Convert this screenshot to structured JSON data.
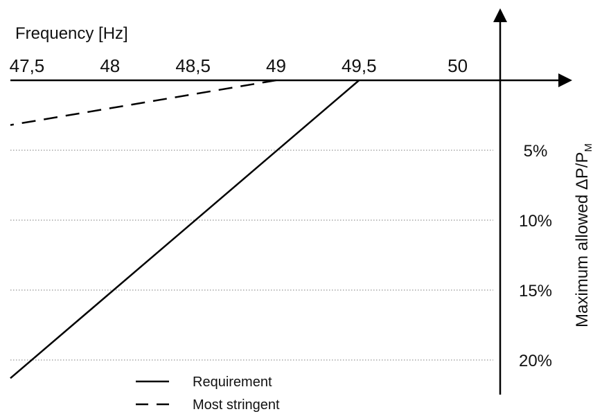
{
  "chart_data": {
    "type": "line",
    "title": "",
    "xlabel": "Frequency [Hz]",
    "ylabel": {
      "main": "Maximum allowed ΔP/P",
      "subscript": "M"
    },
    "x_ticks": [
      "47,5",
      "48",
      "48,5",
      "49",
      "49,5",
      "50"
    ],
    "x_tick_values": [
      47.5,
      48,
      48.5,
      49,
      49.5,
      50
    ],
    "y_ticks": [
      "5%",
      "10%",
      "15%",
      "20%"
    ],
    "y_tick_values": [
      5,
      10,
      15,
      20
    ],
    "xlim": [
      47.4,
      50.35
    ],
    "ylim": [
      0,
      21.5
    ],
    "y_inverted": true,
    "grid": "horizontal dotted at y ticks",
    "legend_position": "bottom-left",
    "series": [
      {
        "name": "Requirement",
        "style": "solid",
        "points": [
          [
            49.5,
            0
          ],
          [
            47.4,
            21.3
          ]
        ]
      },
      {
        "name": "Most stringent",
        "style": "dashed",
        "points": [
          [
            49.0,
            0
          ],
          [
            47.4,
            3.2
          ]
        ]
      }
    ],
    "colors": {
      "line": "#000000",
      "grid": "#7a7a7a"
    }
  }
}
